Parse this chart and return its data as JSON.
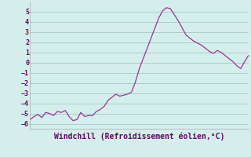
{
  "title": "Windchill (Refroidissement éolien,°C)",
  "background_color": "#d4efeb",
  "line_color": "#993399",
  "grid_color": "#aacccc",
  "ylim": [
    -6.5,
    6.0
  ],
  "yticks": [
    -6,
    -5,
    -4,
    -3,
    -2,
    -1,
    0,
    1,
    2,
    3,
    4,
    5
  ],
  "ylabel_color": "#660066",
  "title_color": "#660066",
  "y_values": [
    -5.6,
    -5.3,
    -5.1,
    -5.4,
    -4.9,
    -5.0,
    -5.2,
    -4.8,
    -4.9,
    -4.7,
    -5.3,
    -5.7,
    -5.6,
    -4.9,
    -5.3,
    -5.2,
    -5.2,
    -4.8,
    -4.6,
    -4.3,
    -3.7,
    -3.4,
    -3.1,
    -3.3,
    -3.2,
    -3.1,
    -2.9,
    -1.9,
    -0.6,
    0.4,
    1.4,
    2.4,
    3.4,
    4.4,
    5.1,
    5.4,
    5.3,
    4.7,
    4.1,
    3.4,
    2.7,
    2.4,
    2.1,
    1.9,
    1.7,
    1.4,
    1.1,
    0.9,
    1.2,
    1.0,
    0.7,
    0.4,
    0.1,
    -0.3,
    -0.6,
    0.1,
    0.7
  ]
}
